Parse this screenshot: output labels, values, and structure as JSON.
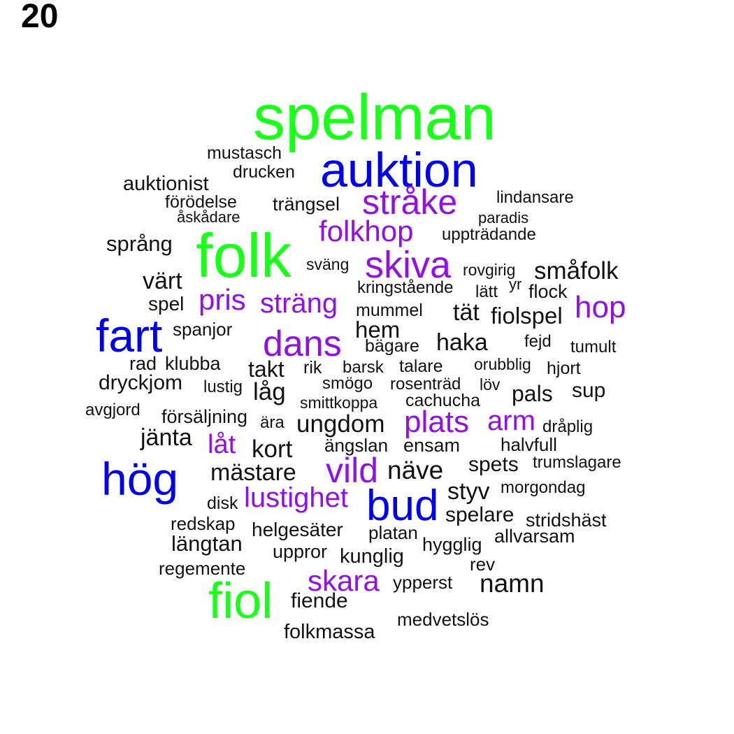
{
  "figure_label": "20",
  "colors": {
    "green": "#1aff1a",
    "blue": "#0000ee",
    "purple": "#9010e6",
    "black": "#111111"
  },
  "words": [
    {
      "text": "spelman",
      "color": "green"
    },
    {
      "text": "auktion",
      "color": "blue"
    },
    {
      "text": "mustasch",
      "color": "black"
    },
    {
      "text": "drucken",
      "color": "black"
    },
    {
      "text": "auktionist",
      "color": "black"
    },
    {
      "text": "stråke",
      "color": "purple"
    },
    {
      "text": "lindansare",
      "color": "black"
    },
    {
      "text": "förödelse",
      "color": "black"
    },
    {
      "text": "trängsel",
      "color": "black"
    },
    {
      "text": "åskådare",
      "color": "black"
    },
    {
      "text": "paradis",
      "color": "black"
    },
    {
      "text": "folkhop",
      "color": "purple"
    },
    {
      "text": "uppträdande",
      "color": "black"
    },
    {
      "text": "språng",
      "color": "black"
    },
    {
      "text": "folk",
      "color": "green"
    },
    {
      "text": "sväng",
      "color": "black"
    },
    {
      "text": "skiva",
      "color": "purple"
    },
    {
      "text": "rovgirig",
      "color": "black"
    },
    {
      "text": "småfolk",
      "color": "black"
    },
    {
      "text": "värt",
      "color": "black"
    },
    {
      "text": "yr",
      "color": "black"
    },
    {
      "text": "kringstående",
      "color": "black"
    },
    {
      "text": "lätt",
      "color": "black"
    },
    {
      "text": "flock",
      "color": "black"
    },
    {
      "text": "spel",
      "color": "black"
    },
    {
      "text": "pris",
      "color": "purple"
    },
    {
      "text": "sträng",
      "color": "purple"
    },
    {
      "text": "hop",
      "color": "purple"
    },
    {
      "text": "mummel",
      "color": "black"
    },
    {
      "text": "tät",
      "color": "black"
    },
    {
      "text": "fiolspel",
      "color": "black"
    },
    {
      "text": "fart",
      "color": "blue"
    },
    {
      "text": "spanjor",
      "color": "black"
    },
    {
      "text": "hem",
      "color": "black"
    },
    {
      "text": "dans",
      "color": "purple"
    },
    {
      "text": "haka",
      "color": "black"
    },
    {
      "text": "fejd",
      "color": "black"
    },
    {
      "text": "bägare",
      "color": "black"
    },
    {
      "text": "tumult",
      "color": "black"
    },
    {
      "text": "rad",
      "color": "black"
    },
    {
      "text": "klubba",
      "color": "black"
    },
    {
      "text": "takt",
      "color": "black"
    },
    {
      "text": "rik",
      "color": "black"
    },
    {
      "text": "barsk",
      "color": "black"
    },
    {
      "text": "talare",
      "color": "black"
    },
    {
      "text": "orubblig",
      "color": "black"
    },
    {
      "text": "hjort",
      "color": "black"
    },
    {
      "text": "dryckjom",
      "color": "black"
    },
    {
      "text": "lustig",
      "color": "black"
    },
    {
      "text": "låg",
      "color": "black"
    },
    {
      "text": "smögo",
      "color": "black"
    },
    {
      "text": "rosenträd",
      "color": "black"
    },
    {
      "text": "löv",
      "color": "black"
    },
    {
      "text": "pals",
      "color": "black"
    },
    {
      "text": "sup",
      "color": "black"
    },
    {
      "text": "smittkoppa",
      "color": "black"
    },
    {
      "text": "cachucha",
      "color": "black"
    },
    {
      "text": "avgjord",
      "color": "black"
    },
    {
      "text": "försäljning",
      "color": "black"
    },
    {
      "text": "ära",
      "color": "black"
    },
    {
      "text": "ungdom",
      "color": "black"
    },
    {
      "text": "plats",
      "color": "purple"
    },
    {
      "text": "arm",
      "color": "purple"
    },
    {
      "text": "dråplig",
      "color": "black"
    },
    {
      "text": "jänta",
      "color": "black"
    },
    {
      "text": "låt",
      "color": "purple"
    },
    {
      "text": "kort",
      "color": "black"
    },
    {
      "text": "ängslan",
      "color": "black"
    },
    {
      "text": "ensam",
      "color": "black"
    },
    {
      "text": "halvfull",
      "color": "black"
    },
    {
      "text": "hög",
      "color": "blue"
    },
    {
      "text": "mästare",
      "color": "black"
    },
    {
      "text": "vild",
      "color": "purple"
    },
    {
      "text": "näve",
      "color": "black"
    },
    {
      "text": "spets",
      "color": "black"
    },
    {
      "text": "trumslagare",
      "color": "black"
    },
    {
      "text": "styv",
      "color": "black"
    },
    {
      "text": "morgondag",
      "color": "black"
    },
    {
      "text": "disk",
      "color": "black"
    },
    {
      "text": "lustighet",
      "color": "purple"
    },
    {
      "text": "bud",
      "color": "blue"
    },
    {
      "text": "spelare",
      "color": "black"
    },
    {
      "text": "stridshäst",
      "color": "black"
    },
    {
      "text": "redskap",
      "color": "black"
    },
    {
      "text": "helgesäter",
      "color": "black"
    },
    {
      "text": "platan",
      "color": "black"
    },
    {
      "text": "allvarsam",
      "color": "black"
    },
    {
      "text": "längtan",
      "color": "black"
    },
    {
      "text": "hygglig",
      "color": "black"
    },
    {
      "text": "uppror",
      "color": "black"
    },
    {
      "text": "kunglig",
      "color": "black"
    },
    {
      "text": "rev",
      "color": "black"
    },
    {
      "text": "regemente",
      "color": "black"
    },
    {
      "text": "skara",
      "color": "purple"
    },
    {
      "text": "ypperst",
      "color": "black"
    },
    {
      "text": "namn",
      "color": "black"
    },
    {
      "text": "fiol",
      "color": "green"
    },
    {
      "text": "fiende",
      "color": "black"
    },
    {
      "text": "medvetslös",
      "color": "black"
    },
    {
      "text": "folkmassa",
      "color": "black"
    }
  ]
}
